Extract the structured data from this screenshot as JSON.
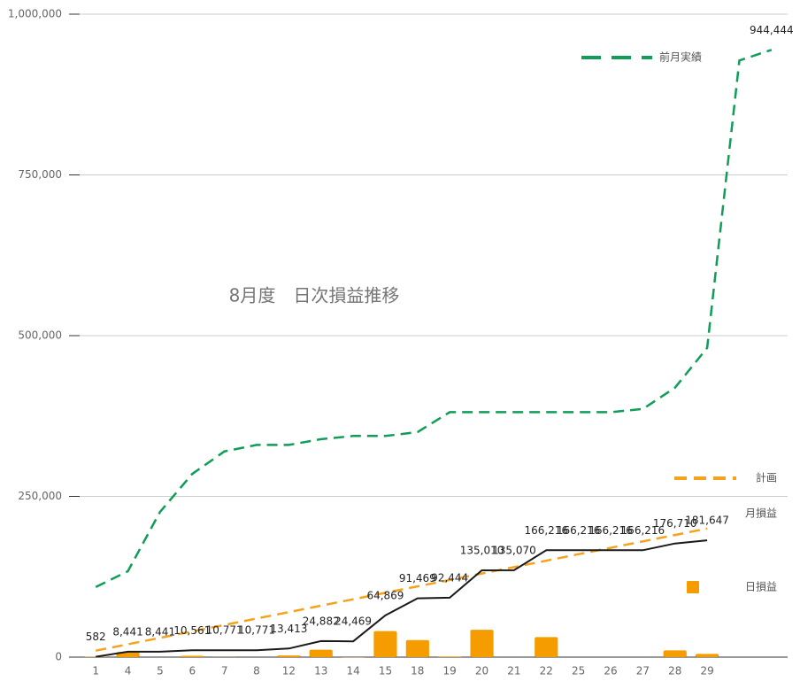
{
  "chart_data": {
    "type": "combo",
    "title": "8月度　日次損益推移",
    "categories": [
      "1",
      "4",
      "5",
      "6",
      "7",
      "8",
      "12",
      "13",
      "14",
      "15",
      "18",
      "19",
      "20",
      "21",
      "22",
      "25",
      "26",
      "27",
      "28",
      "29",
      null,
      null
    ],
    "series": [
      {
        "name": "前月実績",
        "type": "line",
        "dash": true,
        "color": "#0f9d58",
        "values": [
          109000,
          133600,
          226000,
          285000,
          320000,
          330000,
          330000,
          339000,
          344000,
          344000,
          350000,
          381000,
          381000,
          381000,
          381000,
          381000,
          381000,
          386000,
          419000,
          481000,
          928000,
          944444
        ],
        "value_labels": [
          null,
          null,
          null,
          null,
          null,
          null,
          null,
          null,
          null,
          null,
          null,
          null,
          null,
          null,
          null,
          null,
          null,
          null,
          null,
          null,
          null,
          "944,444"
        ]
      },
      {
        "name": "計画",
        "type": "line",
        "dash": true,
        "color": "#f5a21c",
        "values": [
          10000,
          20000,
          30000,
          40000,
          50000,
          60000,
          70000,
          80000,
          90000,
          100000,
          110000,
          120000,
          130000,
          140000,
          150000,
          160000,
          170000,
          180000,
          190000,
          200000,
          null,
          null
        ]
      },
      {
        "name": "月損益",
        "type": "line",
        "dash": false,
        "color": "#1a1a1a",
        "values": [
          582,
          8441,
          8441,
          10561,
          10771,
          10771,
          13413,
          24882,
          24469,
          64869,
          91469,
          92444,
          135010,
          135070,
          166216,
          166216,
          166216,
          166216,
          176710,
          181647,
          null,
          null
        ],
        "value_labels": [
          "582",
          "8,441",
          "8,441",
          "10,561",
          "10,771",
          "10,771",
          "13,413",
          "24,882",
          "24,469",
          "64,869",
          "91,469",
          "92,444",
          "135,010",
          "135,070",
          "166,216",
          "166,216",
          "166,216",
          "166,216",
          "176,710",
          "181,647",
          null,
          null
        ]
      },
      {
        "name": "日損益",
        "type": "bar",
        "color": "#f59c00",
        "values": [
          582,
          7859,
          0,
          2120,
          210,
          0,
          2642,
          11469,
          -413,
          40400,
          26600,
          975,
          42566,
          60,
          31146,
          0,
          0,
          0,
          10494,
          4937,
          null,
          null
        ]
      }
    ],
    "ylim": [
      0,
      1000000
    ],
    "yticks": [
      {
        "value": 0,
        "label": "0"
      },
      {
        "value": 250000,
        "label": "250,000"
      },
      {
        "value": 500000,
        "label": "500,000"
      },
      {
        "value": 750000,
        "label": "750,000"
      },
      {
        "value": 1000000,
        "label": "1,000,000"
      }
    ],
    "grid": true
  }
}
